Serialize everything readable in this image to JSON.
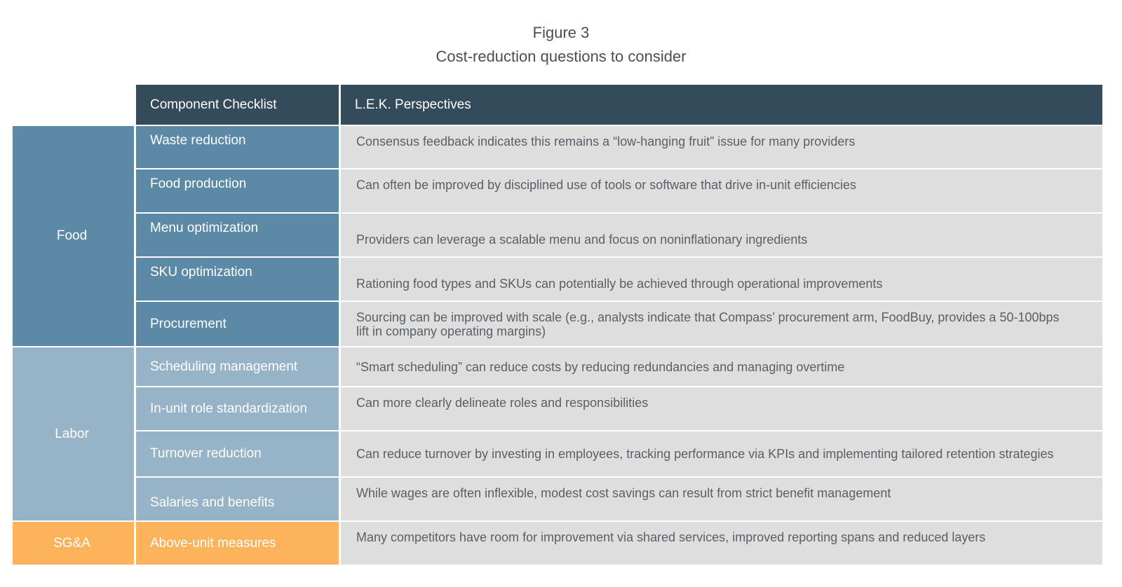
{
  "figure": {
    "label": "Figure 3",
    "title": "Cost-reduction questions to consider"
  },
  "table": {
    "headers": [
      "Component Checklist",
      "L.E.K. Perspectives"
    ],
    "categories": [
      {
        "name": "Food",
        "color": "#5b89a6"
      },
      {
        "name": "Labor",
        "color": "#96b3c8"
      },
      {
        "name": "SG&A",
        "color": "#fcb35c"
      }
    ],
    "rows": [
      {
        "category": "Food",
        "component": "Waste reduction",
        "perspective": "Consensus feedback indicates this remains a “low-hanging fruit” issue for many providers"
      },
      {
        "category": "Food",
        "component": "Food production",
        "perspective": "Can often be improved by disciplined use of tools or software that drive in-unit efficiencies"
      },
      {
        "category": "Food",
        "component": "Menu optimization",
        "perspective": "Providers can leverage a scalable menu and focus on noninflationary ingredients"
      },
      {
        "category": "Food",
        "component": "SKU optimization",
        "perspective": "Rationing food types and SKUs can potentially be achieved through operational improvements"
      },
      {
        "category": "Food",
        "component": "Procurement",
        "perspective": "Sourcing can be improved with scale (e.g., analysts indicate that Compass’ procurement arm, FoodBuy, provides a 50-100bps lift in company operating margins)"
      },
      {
        "category": "Labor",
        "component": "Scheduling management",
        "perspective": "“Smart scheduling” can reduce costs by reducing redundancies and managing overtime"
      },
      {
        "category": "Labor",
        "component": "In-unit role standardization",
        "perspective": "Can more clearly delineate roles and responsibilities"
      },
      {
        "category": "Labor",
        "component": "Turnover reduction",
        "perspective": "Can reduce turnover by investing in employees, tracking performance via KPIs and implementing tailored retention strategies"
      },
      {
        "category": "Labor",
        "component": "Salaries and benefits",
        "perspective": "While wages are often inflexible, modest cost savings can result from strict benefit management"
      },
      {
        "category": "SG&A",
        "component": "Above-unit measures",
        "perspective": "Many competitors have room for improvement via shared services, improved reporting spans and reduced layers"
      }
    ]
  }
}
